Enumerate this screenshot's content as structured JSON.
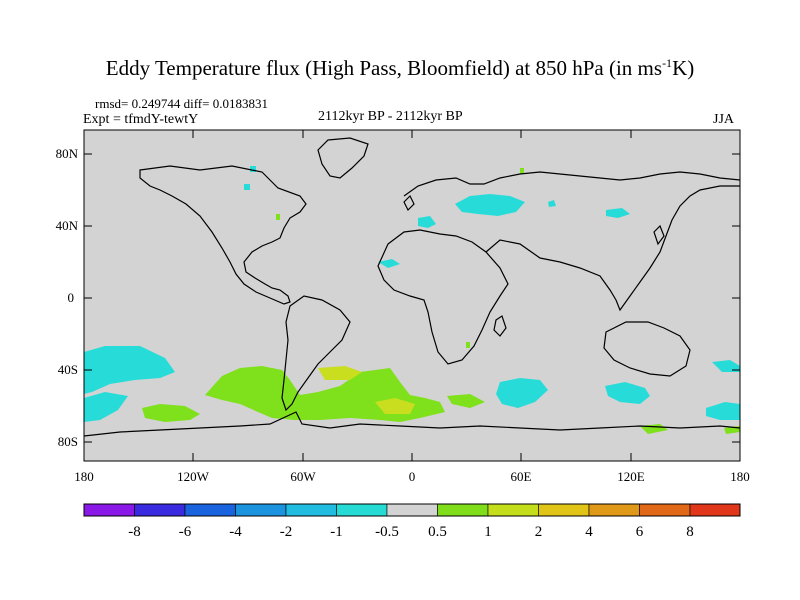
{
  "title": {
    "main": "Eddy Temperature flux (High Pass, Bloomfield) at 850 hPa (in ms",
    "sup": "-1",
    "tail": "K)"
  },
  "stats": "rmsd= 0.249744  diff= 0.0183831",
  "expt": "Expt = tfmdY-tewtY",
  "period": "2112kyr BP - 2112kyr BP",
  "season": "JJA",
  "map": {
    "background_color": "#d3d3d3",
    "lat_ticks": [
      "80N",
      "40N",
      "0",
      "40S",
      "80S"
    ],
    "lon_ticks": [
      "180",
      "120W",
      "60W",
      "0",
      "60E",
      "120E",
      "180"
    ],
    "colors": {
      "aqua": "#27dcd8",
      "green": "#7fe01c",
      "yellowgreen": "#c8de1e",
      "coast": "#000000"
    }
  },
  "colorbar": {
    "colors": [
      "#8a18e6",
      "#3a2be0",
      "#1a63de",
      "#1c93df",
      "#20bde0",
      "#26dbd4",
      "#d3d3d3",
      "#7fdd1a",
      "#c5de1c",
      "#e0c418",
      "#e09818",
      "#e06818",
      "#e0361a"
    ],
    "labels": [
      "-8",
      "-6",
      "-4",
      "-2",
      "-1",
      "-0.5",
      "0.5",
      "1",
      "2",
      "4",
      "6",
      "8"
    ]
  }
}
